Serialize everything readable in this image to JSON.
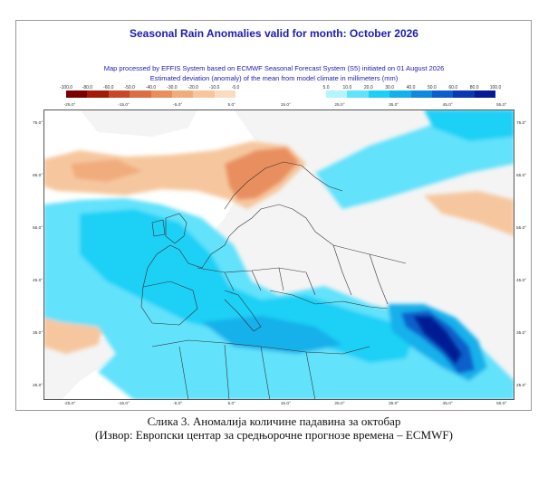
{
  "map": {
    "title": "Seasonal Rain Anomalies valid for month: October 2026",
    "subtitle_1": "Map processed by EFFIS System based on ECMWF Seasonal Forecast System (S5) initiated on 01 August 2026",
    "subtitle_2": "Estimated deviation (anomaly) of the mean from model climate in millimeters (mm)",
    "legend_negative": {
      "labels": [
        "-100.0",
        "-80.0",
        "-60.0",
        "-50.0",
        "-40.0",
        "-30.0",
        "-20.0",
        "-10.0",
        "-5.0"
      ],
      "colors": [
        "#7a0000",
        "#a31a0a",
        "#c8462a",
        "#db6e45",
        "#e98f5e",
        "#f1ac7d",
        "#f6c79f",
        "#fadcc0"
      ]
    },
    "legend_positive": {
      "labels": [
        "5.0",
        "10.0",
        "20.0",
        "30.0",
        "40.0",
        "50.0",
        "60.0",
        "80.0",
        "100.0"
      ],
      "colors": [
        "#b4f4ff",
        "#62e2fb",
        "#1fd0f6",
        "#14b0eb",
        "#1089dc",
        "#0d5ecb",
        "#0a38b3",
        "#061a94"
      ]
    },
    "top_lon_labels": [
      "-25.0°",
      "-15.0°",
      "-5.0°",
      "5.0°",
      "15.0°",
      "25.0°",
      "35.0°",
      "45.0°",
      "55.0°"
    ],
    "bottom_lon_labels": [
      "-25.0°",
      "-15.0°",
      "-5.0°",
      "5.0°",
      "15.0°",
      "25.0°",
      "35.0°",
      "45.0°",
      "55.0°"
    ],
    "left_lat_labels": [
      "75.0°",
      "65.0°",
      "55.0°",
      "45.0°",
      "35.0°",
      "25.0°"
    ],
    "right_lat_labels": [
      "75.0°",
      "65.0°",
      "55.0°",
      "45.0°",
      "35.0°",
      "25.0°"
    ],
    "colors": {
      "title": "#1c1cb4",
      "land_grey": "#f4f4f4",
      "border": "#333333"
    }
  },
  "caption": {
    "line1": "Слика 3. Аномалија количине падавина за октобар",
    "line2": "(Извор: Европски центар за средњорочне прогнозе времена – ECMWF)"
  }
}
